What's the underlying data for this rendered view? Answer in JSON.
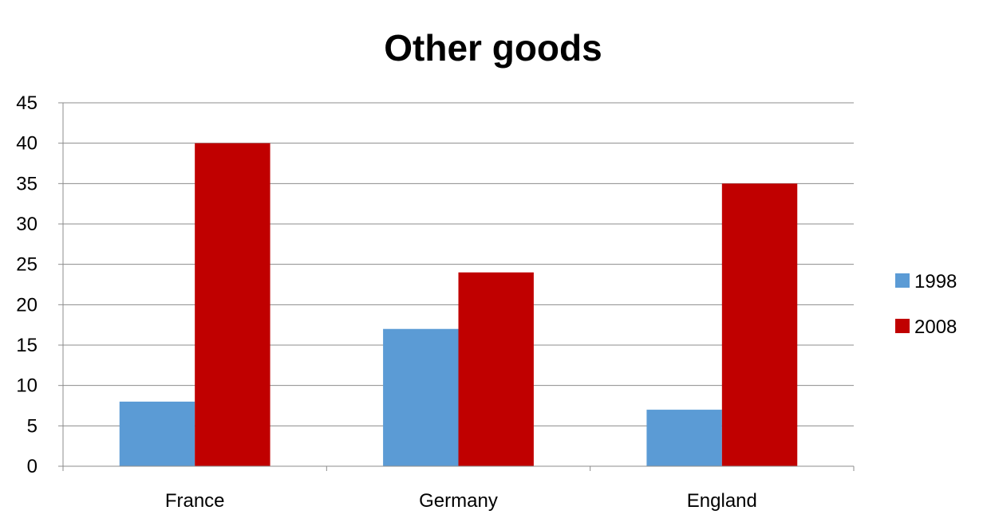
{
  "chart_data": {
    "type": "bar",
    "title": "Other goods",
    "xlabel": "",
    "ylabel": "",
    "categories": [
      "France",
      "Germany",
      "England"
    ],
    "series": [
      {
        "name": "1998",
        "values": [
          8,
          17,
          7
        ],
        "color": "#5B9BD5"
      },
      {
        "name": "2008",
        "values": [
          40,
          24,
          35
        ],
        "color": "#C00000"
      }
    ],
    "ylim": [
      0,
      45
    ],
    "yticks": [
      0,
      5,
      10,
      15,
      20,
      25,
      30,
      35,
      40,
      45
    ],
    "grid": true,
    "legend_position": "right"
  }
}
